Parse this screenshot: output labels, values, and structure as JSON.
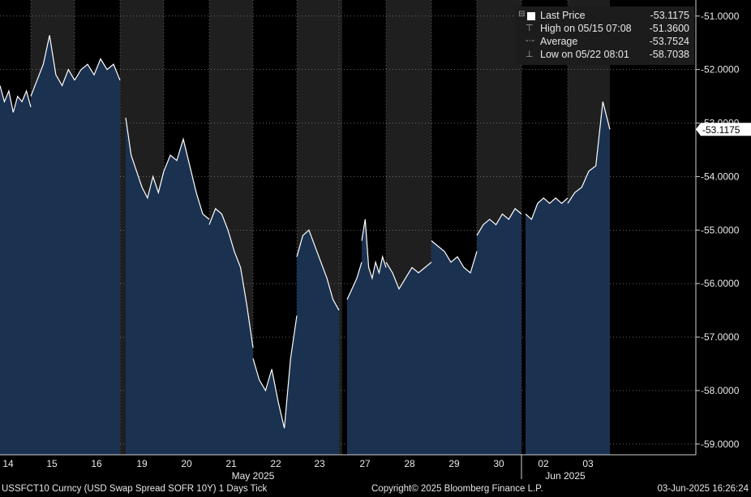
{
  "legend": {
    "items": [
      {
        "label": "Last Price",
        "value": "-53.1175",
        "marker": "square"
      },
      {
        "label": "High on 05/15 07:08",
        "value": "-51.3600",
        "marker": "high"
      },
      {
        "label": "Average",
        "value": "-53.7524",
        "marker": "avg"
      },
      {
        "label": "Low on 05/22 08:01",
        "value": "-58.7038",
        "marker": "low"
      }
    ]
  },
  "last_price_tag": "-53.1175",
  "footer": {
    "ticker": "USSFCT10 Curncy (USD Swap Spread SOFR 10Y) 1 Days  Tick",
    "copyright": "Copyright© 2025 Bloomberg Finance L.P.",
    "timestamp": "03-Jun-2025 16:26:24"
  },
  "colors": {
    "background": "#000000",
    "night_band": "#1f1f1f",
    "area_fill": "#1b3150",
    "line": "#ffffff",
    "axis_text": "#e8e8e8",
    "grid": "#555555"
  },
  "chart_data": {
    "type": "area",
    "title": "",
    "xlabel": "",
    "ylabel": "",
    "ylim": [
      -59.2,
      -50.7
    ],
    "y_ticks": [
      "-51.0000",
      "-52.0000",
      "-53.0000",
      "-54.0000",
      "-55.0000",
      "-56.0000",
      "-57.0000",
      "-58.0000",
      "-59.0000"
    ],
    "x_tick_labels": [
      "14",
      "15",
      "16",
      "19",
      "20",
      "21",
      "22",
      "23",
      "26",
      "27",
      "28",
      "29",
      "30",
      "02",
      "03"
    ],
    "x_group_labels": [
      "May 2025",
      "Jun 2025"
    ],
    "sessions": [
      {
        "day": "14",
        "points": [
          -52.3,
          -52.6,
          -52.4,
          -52.8,
          -52.5,
          -52.6,
          -52.4,
          -52.7
        ]
      },
      {
        "day": "15",
        "points": [
          -52.5,
          -52.2,
          -51.9,
          -51.36,
          -52.1,
          -52.3,
          -52.0,
          -52.2
        ]
      },
      {
        "day": "16",
        "points": [
          -52.2,
          -52.0,
          -51.9,
          -52.1,
          -51.8,
          -52.0,
          -51.9,
          -52.2
        ]
      },
      {
        "day": "19",
        "points": [
          -52.9,
          -53.6,
          -53.9,
          -54.2,
          -54.4,
          -54.0,
          -54.3,
          -53.9
        ]
      },
      {
        "day": "20",
        "points": [
          -53.9,
          -53.6,
          -53.7,
          -53.3,
          -53.8,
          -54.3,
          -54.7,
          -54.8
        ]
      },
      {
        "day": "21",
        "points": [
          -54.9,
          -54.6,
          -54.7,
          -55.0,
          -55.4,
          -55.7,
          -56.4,
          -57.2
        ]
      },
      {
        "day": "22",
        "points": [
          -57.4,
          -57.8,
          -58.0,
          -57.6,
          -58.2,
          -58.7038,
          -57.4,
          -56.6
        ]
      },
      {
        "day": "23",
        "points": [
          -55.5,
          -55.1,
          -55.0,
          -55.3,
          -55.6,
          -55.9,
          -56.3,
          -56.5
        ]
      },
      {
        "day": "26",
        "points": [
          -56.3,
          -56.1,
          -55.9,
          -55.6
        ]
      },
      {
        "day": "27",
        "points": [
          -55.2,
          -54.8,
          -55.7,
          -55.9,
          -55.6,
          -55.8,
          -55.5,
          -55.7
        ]
      },
      {
        "day": "28",
        "points": [
          -55.6,
          -55.8,
          -56.1,
          -55.9,
          -55.7,
          -55.8,
          -55.7,
          -55.6
        ]
      },
      {
        "day": "29",
        "points": [
          -55.2,
          -55.3,
          -55.4,
          -55.6,
          -55.5,
          -55.7,
          -55.8,
          -55.4
        ]
      },
      {
        "day": "30",
        "points": [
          -55.1,
          -54.9,
          -54.8,
          -54.9,
          -54.7,
          -54.8,
          -54.6,
          -54.7
        ]
      },
      {
        "day": "02",
        "points": [
          -54.7,
          -54.8,
          -54.5,
          -54.4,
          -54.5,
          -54.4,
          -54.5,
          -54.4
        ]
      },
      {
        "day": "03",
        "points": [
          -54.5,
          -54.3,
          -54.2,
          -53.9,
          -53.8,
          -52.6,
          -53.1175
        ]
      }
    ]
  }
}
